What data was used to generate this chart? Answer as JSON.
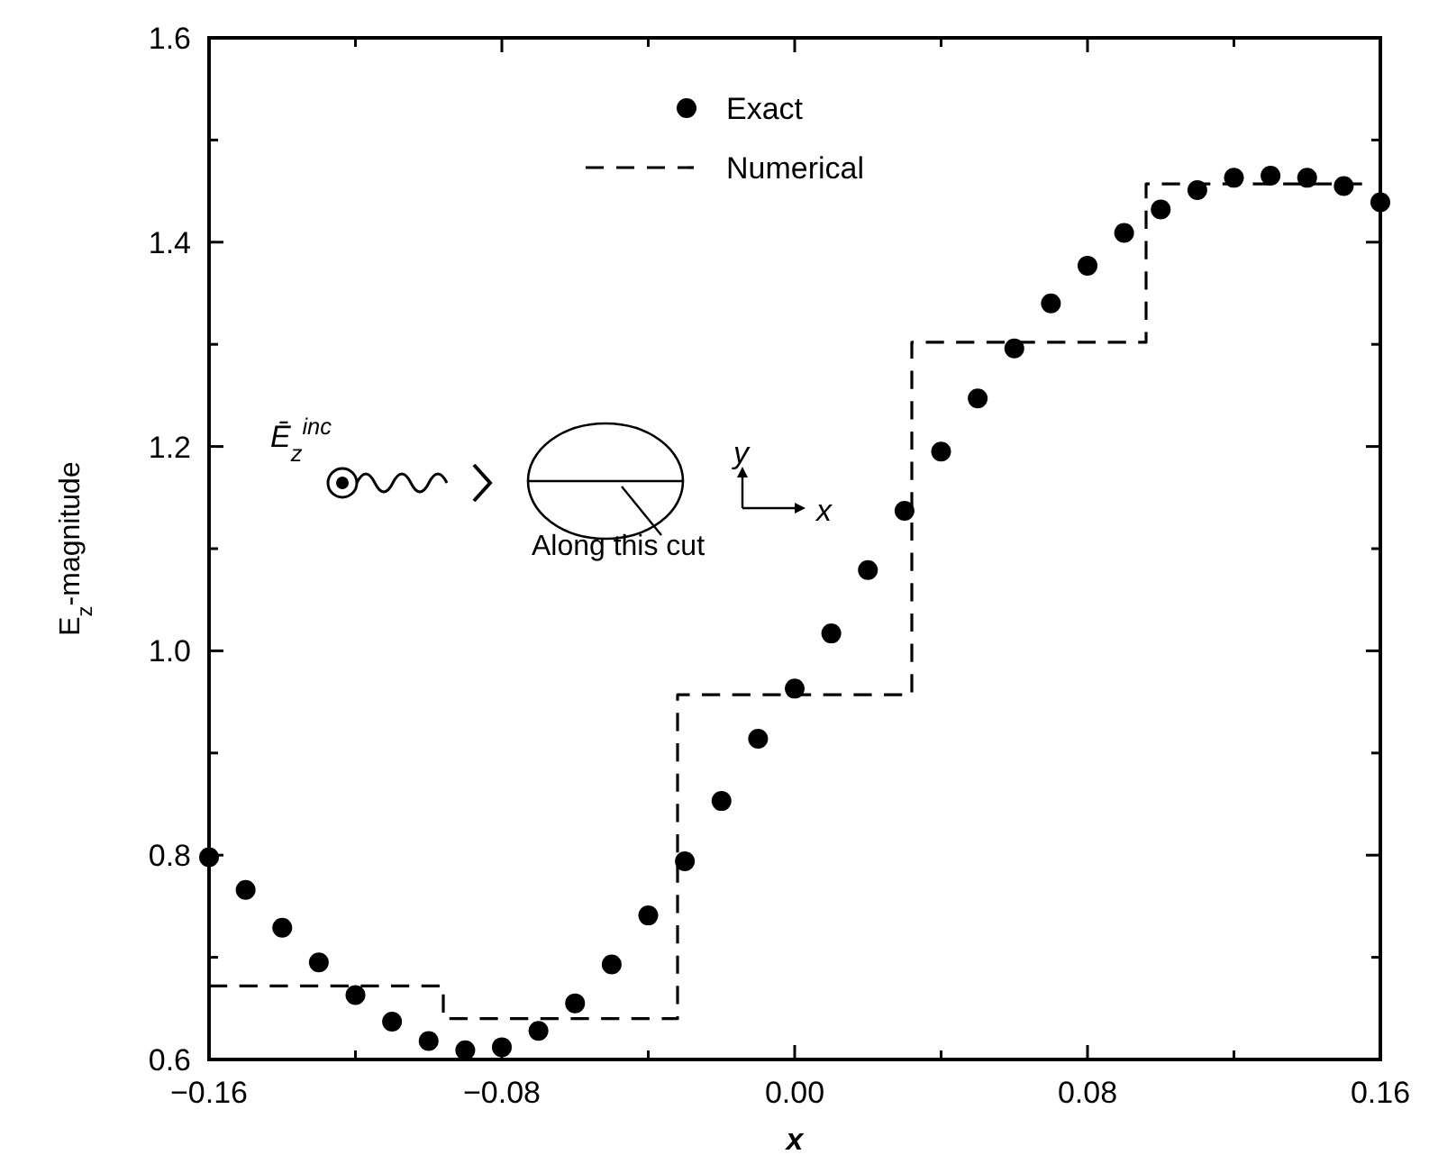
{
  "chart_data": {
    "type": "scatter",
    "xlabel": "x",
    "ylabel": "E$_{z}$-magnitude",
    "xlim": [
      -0.16,
      0.16
    ],
    "xticks": [
      -0.16,
      {
        "value": -0.12,
        "label": null
      },
      -0.08,
      {
        "value": -0.04,
        "label": null
      },
      {
        "value": 0,
        "label": "0.00"
      },
      {
        "value": 0.04,
        "label": null
      },
      0.08,
      {
        "value": 0.12,
        "label": null
      },
      0.16
    ],
    "ylim": [
      0.6,
      1.6
    ],
    "yticks": [
      0.6,
      {
        "value": 0.7,
        "label": null
      },
      0.8,
      {
        "value": 0.9,
        "label": null
      },
      {
        "value": 1.0,
        "label": "1.0"
      },
      {
        "value": 1.1,
        "label": null
      },
      1.2,
      {
        "value": 1.3,
        "label": null
      },
      1.4,
      {
        "value": 1.5,
        "label": null
      },
      1.6
    ],
    "legend": "top",
    "series": [
      {
        "name": "Exact",
        "marker": "circle",
        "color": "#000000",
        "x": [
          -0.16,
          -0.15,
          -0.14,
          -0.13,
          -0.12,
          -0.11,
          -0.1,
          -0.09,
          -0.08,
          -0.07,
          -0.06,
          -0.05,
          -0.04,
          -0.03,
          -0.02,
          -0.01,
          0.0,
          0.01,
          0.02,
          0.03,
          0.04,
          0.05,
          0.06,
          0.07,
          0.08,
          0.09,
          0.1,
          0.11,
          0.12,
          0.13,
          0.14,
          0.15,
          0.16
        ],
        "values": [
          0.798,
          0.766,
          0.729,
          0.695,
          0.663,
          0.637,
          0.618,
          0.609,
          0.612,
          0.628,
          0.655,
          0.693,
          0.741,
          0.794,
          0.853,
          0.914,
          0.963,
          1.017,
          1.079,
          1.137,
          1.195,
          1.247,
          1.296,
          1.34,
          1.377,
          1.409,
          1.432,
          1.451,
          1.463,
          1.465,
          1.463,
          1.455,
          1.439
        ]
      },
      {
        "name": "Numerical",
        "type": "step",
        "marker": "none",
        "line_style": "dashed",
        "color": "#000000",
        "x": [
          -0.16,
          -0.096,
          -0.032,
          0.032,
          0.096,
          0.155
        ],
        "values": [
          0.672,
          0.64,
          0.957,
          1.302,
          1.457,
          1.457
        ]
      }
    ],
    "annotations": [
      "Ē$_{z}$$^{inc}$",
      "Along this cut",
      "y",
      "x"
    ]
  }
}
